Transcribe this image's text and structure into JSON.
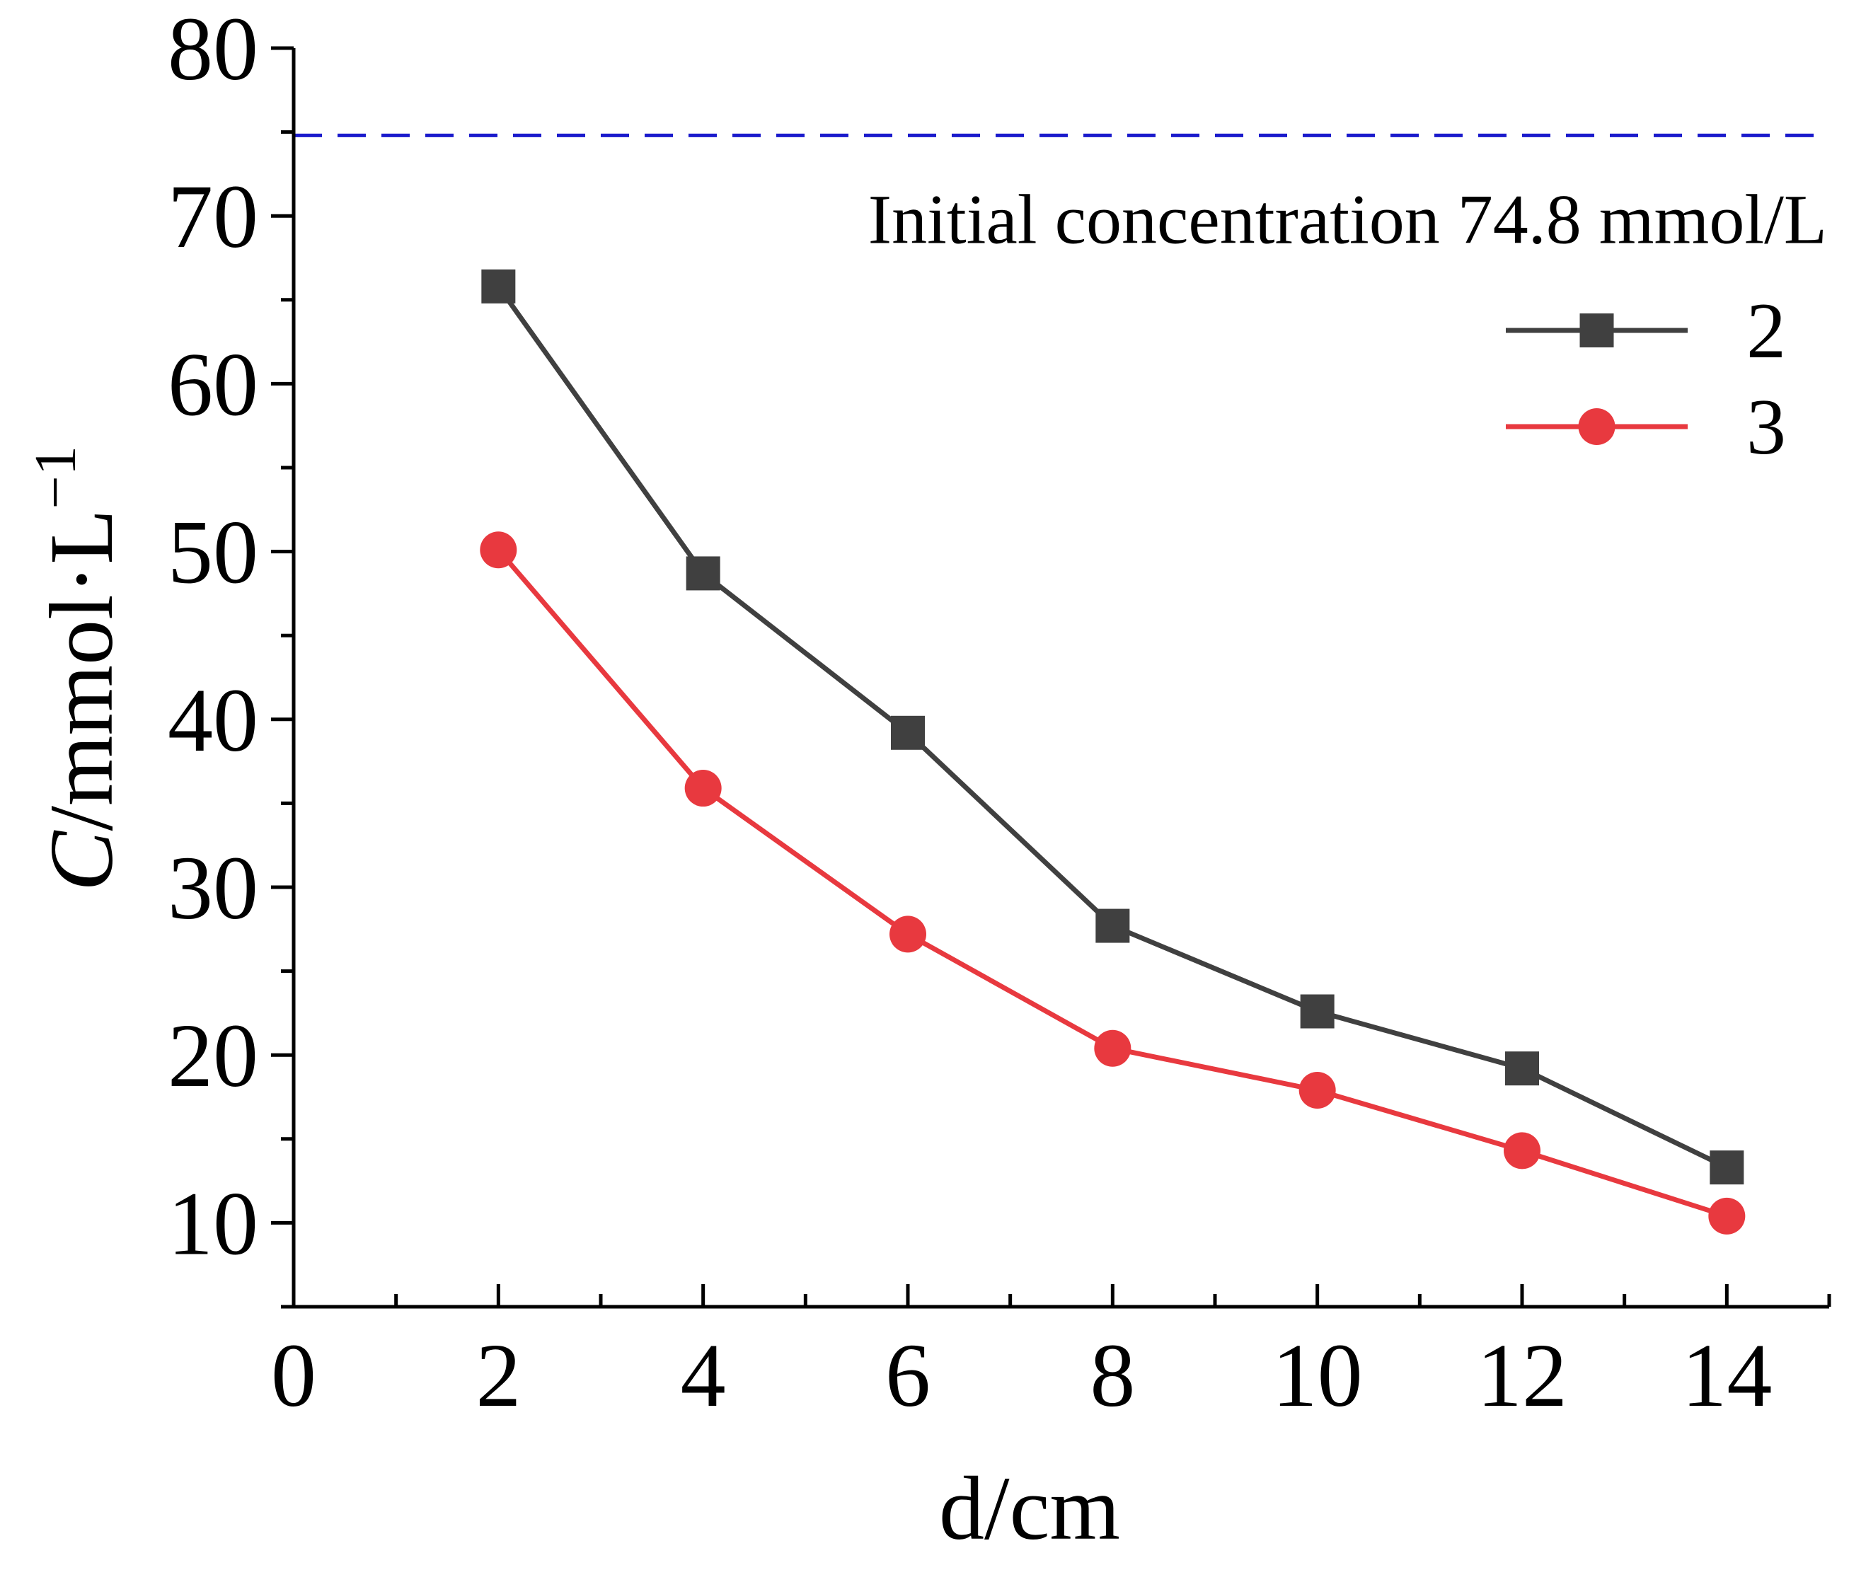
{
  "chart_data": {
    "type": "line",
    "title": "",
    "xlabel": "d/cm",
    "ylabel": {
      "var": "C",
      "unit": "/mmol·L",
      "exponent": "−1"
    },
    "xlim": [
      0,
      15
    ],
    "ylim": [
      5,
      80
    ],
    "x_ticks": [
      0,
      2,
      4,
      6,
      8,
      10,
      12,
      14
    ],
    "y_ticks": [
      10,
      20,
      30,
      40,
      50,
      60,
      70,
      80
    ],
    "x_minor_step": 1,
    "y_minor_step": 5,
    "grid": false,
    "x": [
      2,
      4,
      6,
      8,
      10,
      12,
      14
    ],
    "series": [
      {
        "name": "2",
        "color": "#404040",
        "marker": "square",
        "values": [
          65.8,
          48.7,
          39.2,
          27.7,
          22.6,
          19.2,
          13.3
        ]
      },
      {
        "name": "3",
        "color": "#e8393f",
        "marker": "circle",
        "values": [
          50.1,
          35.9,
          27.2,
          20.4,
          17.9,
          14.3,
          10.4
        ]
      }
    ],
    "reference_line": {
      "value": 74.8,
      "color": "#1a1acc",
      "style": "dashed",
      "label": "Initial concentration 74.8 mmol/L"
    },
    "legend_position": "top-right"
  }
}
